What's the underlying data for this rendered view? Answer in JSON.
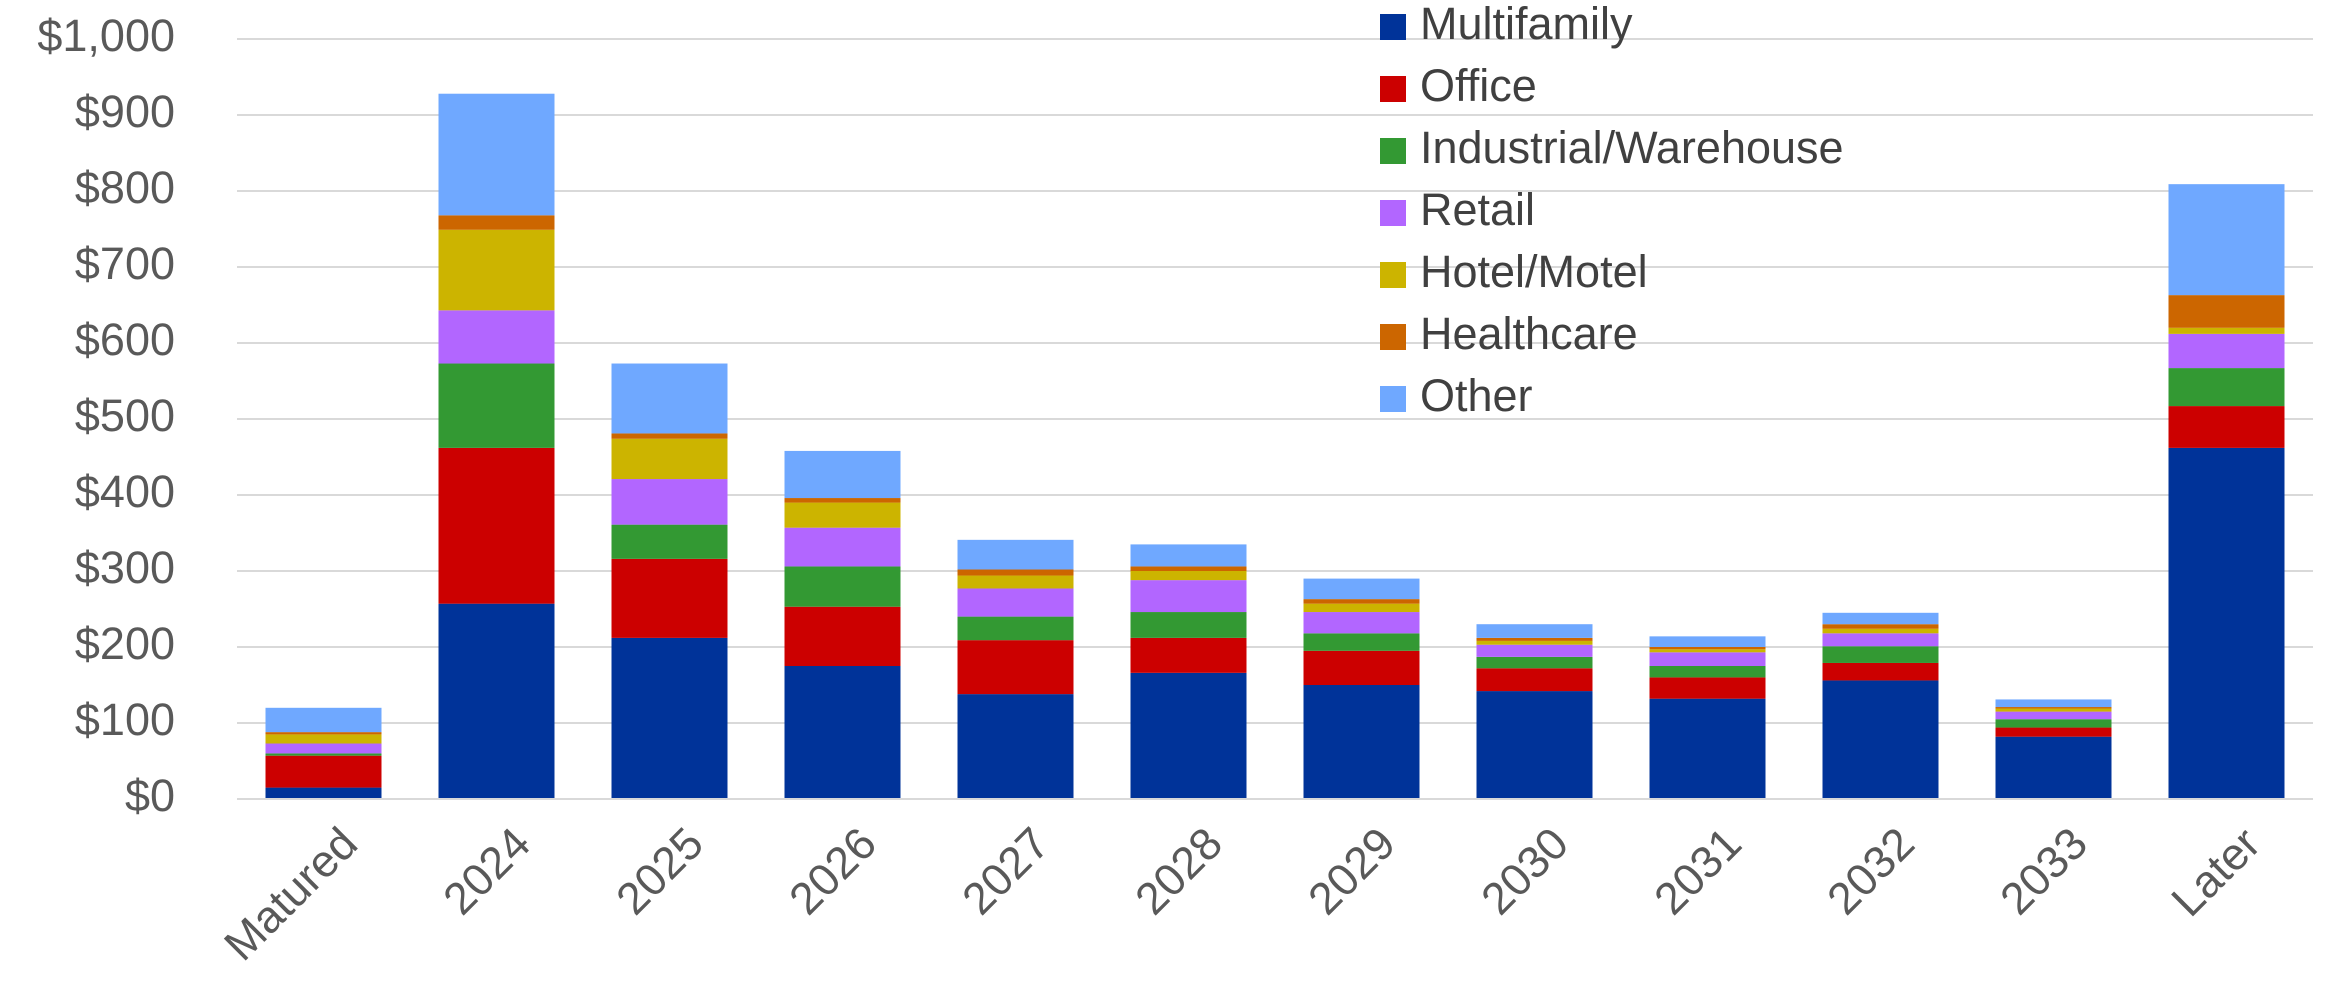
{
  "chart_data": {
    "type": "stacked_bar",
    "categories": [
      "Matured",
      "2024",
      "2025",
      "2026",
      "2027",
      "2028",
      "2029",
      "2030",
      "2031",
      "2032",
      "2033",
      "Later"
    ],
    "series": [
      {
        "name": "Multifamily",
        "color": "#003399",
        "values": [
          15,
          257,
          212,
          175,
          138,
          166,
          150,
          142,
          132,
          156,
          82,
          462
        ]
      },
      {
        "name": "Office",
        "color": "#cc0000",
        "values": [
          42,
          205,
          104,
          78,
          71,
          46,
          45,
          30,
          28,
          23,
          12,
          55
        ]
      },
      {
        "name": "Industrial/Warehouse",
        "color": "#339933",
        "values": [
          3,
          111,
          45,
          53,
          31,
          34,
          23,
          15,
          15,
          22,
          11,
          50
        ]
      },
      {
        "name": "Retail",
        "color": "#b266ff",
        "values": [
          13,
          70,
          60,
          51,
          37,
          42,
          28,
          16,
          18,
          17,
          10,
          45
        ]
      },
      {
        "name": "Hotel/Motel",
        "color": "#ccb400",
        "values": [
          12,
          106,
          53,
          33,
          17,
          12,
          11,
          5,
          4,
          6,
          4,
          8
        ]
      },
      {
        "name": "Healthcare",
        "color": "#cc6600",
        "values": [
          3,
          19,
          7,
          6,
          8,
          6,
          6,
          4,
          3,
          6,
          2,
          43
        ]
      },
      {
        "name": "Other",
        "color": "#6fa8ff",
        "values": [
          32,
          160,
          92,
          62,
          39,
          29,
          27,
          18,
          14,
          15,
          10,
          146
        ]
      }
    ],
    "ylim": [
      0,
      1000
    ],
    "yticks": [
      {
        "value": 0,
        "label": "$0"
      },
      {
        "value": 100,
        "label": "$100"
      },
      {
        "value": 200,
        "label": "$200"
      },
      {
        "value": 300,
        "label": "$300"
      },
      {
        "value": 400,
        "label": "$400"
      },
      {
        "value": 500,
        "label": "$500"
      },
      {
        "value": 600,
        "label": "$600"
      },
      {
        "value": 700,
        "label": "$700"
      },
      {
        "value": 800,
        "label": "$800"
      },
      {
        "value": 900,
        "label": "$900"
      },
      {
        "value": 1000,
        "label": "$1,000"
      }
    ],
    "grid": true,
    "legend": "top-right"
  }
}
